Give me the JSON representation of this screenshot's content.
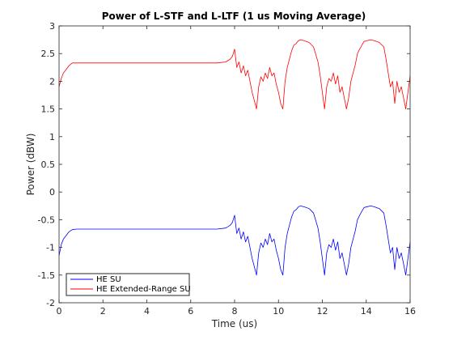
{
  "chart_data": {
    "type": "line",
    "title": "Power of L-STF and L-LTF (1 us Moving Average)",
    "xlabel": "Time (us)",
    "ylabel": "Power (dBW)",
    "xlim": [
      0,
      16
    ],
    "ylim": [
      -2,
      3
    ],
    "xticks": [
      0,
      2,
      4,
      6,
      8,
      10,
      12,
      14,
      16
    ],
    "yticks": [
      -2,
      -1.5,
      -1,
      -0.5,
      0,
      0.5,
      1,
      1.5,
      2,
      2.5,
      3
    ],
    "xtick_labels": [
      "0",
      "2",
      "4",
      "6",
      "8",
      "10",
      "12",
      "14",
      "16"
    ],
    "ytick_labels": [
      "-2",
      "-1.5",
      "-1",
      "-0.5",
      "0",
      "0.5",
      "1",
      "1.5",
      "2",
      "2.5",
      "3"
    ],
    "grid": false,
    "box": true,
    "legend_location": "bottom-left",
    "series": [
      {
        "name": "HE SU",
        "color": "#0000ff",
        "x": [
          0,
          0.1,
          0.2,
          0.3,
          0.45,
          0.6,
          0.8,
          1.2,
          1.6,
          2.0,
          2.4,
          2.8,
          3.2,
          3.6,
          4.0,
          4.4,
          4.8,
          5.2,
          5.6,
          6.0,
          6.4,
          6.8,
          7.2,
          7.6,
          7.8,
          7.9,
          8.0,
          8.1,
          8.2,
          8.3,
          8.4,
          8.5,
          8.6,
          8.7,
          8.8,
          8.9,
          9.0,
          9.1,
          9.2,
          9.3,
          9.4,
          9.5,
          9.6,
          9.7,
          9.8,
          9.9,
          10.0,
          10.1,
          10.2,
          10.3,
          10.4,
          10.5,
          10.6,
          10.7,
          10.8,
          10.9,
          11.0,
          11.2,
          11.4,
          11.6,
          11.8,
          11.9,
          12.0,
          12.1,
          12.2,
          12.3,
          12.4,
          12.5,
          12.6,
          12.7,
          12.8,
          12.9,
          13.0,
          13.1,
          13.2,
          13.3,
          13.4,
          13.5,
          13.6,
          13.7,
          13.8,
          13.9,
          14.0,
          14.2,
          14.4,
          14.6,
          14.8,
          14.9,
          15.0,
          15.1,
          15.2,
          15.3,
          15.4,
          15.5,
          15.6,
          15.7,
          15.8,
          15.9,
          16.0
        ],
        "y": [
          -1.15,
          -0.95,
          -0.85,
          -0.8,
          -0.72,
          -0.68,
          -0.67,
          -0.67,
          -0.67,
          -0.67,
          -0.67,
          -0.67,
          -0.67,
          -0.67,
          -0.67,
          -0.67,
          -0.67,
          -0.67,
          -0.67,
          -0.67,
          -0.67,
          -0.67,
          -0.67,
          -0.65,
          -0.6,
          -0.55,
          -0.42,
          -0.75,
          -0.65,
          -0.85,
          -0.72,
          -0.9,
          -0.8,
          -1.0,
          -1.2,
          -1.35,
          -1.5,
          -1.1,
          -0.92,
          -1.0,
          -0.85,
          -0.95,
          -0.75,
          -0.9,
          -0.85,
          -1.05,
          -1.2,
          -1.4,
          -1.5,
          -1.0,
          -0.75,
          -0.6,
          -0.45,
          -0.35,
          -0.32,
          -0.27,
          -0.25,
          -0.27,
          -0.3,
          -0.38,
          -0.65,
          -0.9,
          -1.2,
          -1.5,
          -1.1,
          -0.95,
          -1.0,
          -0.85,
          -1.05,
          -0.9,
          -1.2,
          -1.1,
          -1.3,
          -1.5,
          -1.3,
          -1.0,
          -0.85,
          -0.7,
          -0.5,
          -0.42,
          -0.35,
          -0.28,
          -0.27,
          -0.25,
          -0.27,
          -0.3,
          -0.38,
          -0.6,
          -0.85,
          -1.1,
          -1.0,
          -1.4,
          -1.0,
          -1.2,
          -1.1,
          -1.3,
          -1.5,
          -1.2,
          -0.9
        ]
      },
      {
        "name": "HE Extended-Range SU",
        "color": "#ff0000",
        "x": [
          0,
          0.1,
          0.2,
          0.3,
          0.45,
          0.6,
          0.8,
          1.2,
          1.6,
          2.0,
          2.4,
          2.8,
          3.2,
          3.6,
          4.0,
          4.4,
          4.8,
          5.2,
          5.6,
          6.0,
          6.4,
          6.8,
          7.2,
          7.6,
          7.8,
          7.9,
          8.0,
          8.1,
          8.2,
          8.3,
          8.4,
          8.5,
          8.6,
          8.7,
          8.8,
          8.9,
          9.0,
          9.1,
          9.2,
          9.3,
          9.4,
          9.5,
          9.6,
          9.7,
          9.8,
          9.9,
          10.0,
          10.1,
          10.2,
          10.3,
          10.4,
          10.5,
          10.6,
          10.7,
          10.8,
          10.9,
          11.0,
          11.2,
          11.4,
          11.6,
          11.8,
          11.9,
          12.0,
          12.1,
          12.2,
          12.3,
          12.4,
          12.5,
          12.6,
          12.7,
          12.8,
          12.9,
          13.0,
          13.1,
          13.2,
          13.3,
          13.4,
          13.5,
          13.6,
          13.7,
          13.8,
          13.9,
          14.0,
          14.2,
          14.4,
          14.6,
          14.8,
          14.9,
          15.0,
          15.1,
          15.2,
          15.3,
          15.4,
          15.5,
          15.6,
          15.7,
          15.8,
          15.9,
          16.0
        ],
        "y": [
          1.9,
          2.05,
          2.15,
          2.2,
          2.28,
          2.33,
          2.33,
          2.33,
          2.33,
          2.33,
          2.33,
          2.33,
          2.33,
          2.33,
          2.33,
          2.33,
          2.33,
          2.33,
          2.33,
          2.33,
          2.33,
          2.33,
          2.33,
          2.35,
          2.4,
          2.45,
          2.58,
          2.25,
          2.35,
          2.15,
          2.28,
          2.1,
          2.2,
          2.0,
          1.8,
          1.65,
          1.5,
          1.9,
          2.08,
          2.0,
          2.15,
          2.05,
          2.25,
          2.1,
          2.15,
          1.95,
          1.8,
          1.6,
          1.5,
          2.0,
          2.25,
          2.4,
          2.55,
          2.65,
          2.68,
          2.73,
          2.75,
          2.73,
          2.7,
          2.62,
          2.35,
          2.1,
          1.8,
          1.5,
          1.9,
          2.05,
          2.0,
          2.15,
          1.95,
          2.1,
          1.8,
          1.9,
          1.7,
          1.5,
          1.7,
          2.0,
          2.15,
          2.3,
          2.5,
          2.58,
          2.65,
          2.72,
          2.73,
          2.75,
          2.73,
          2.7,
          2.62,
          2.4,
          2.15,
          1.9,
          2.0,
          1.6,
          2.0,
          1.8,
          1.9,
          1.7,
          1.5,
          1.8,
          2.1
        ]
      }
    ]
  }
}
